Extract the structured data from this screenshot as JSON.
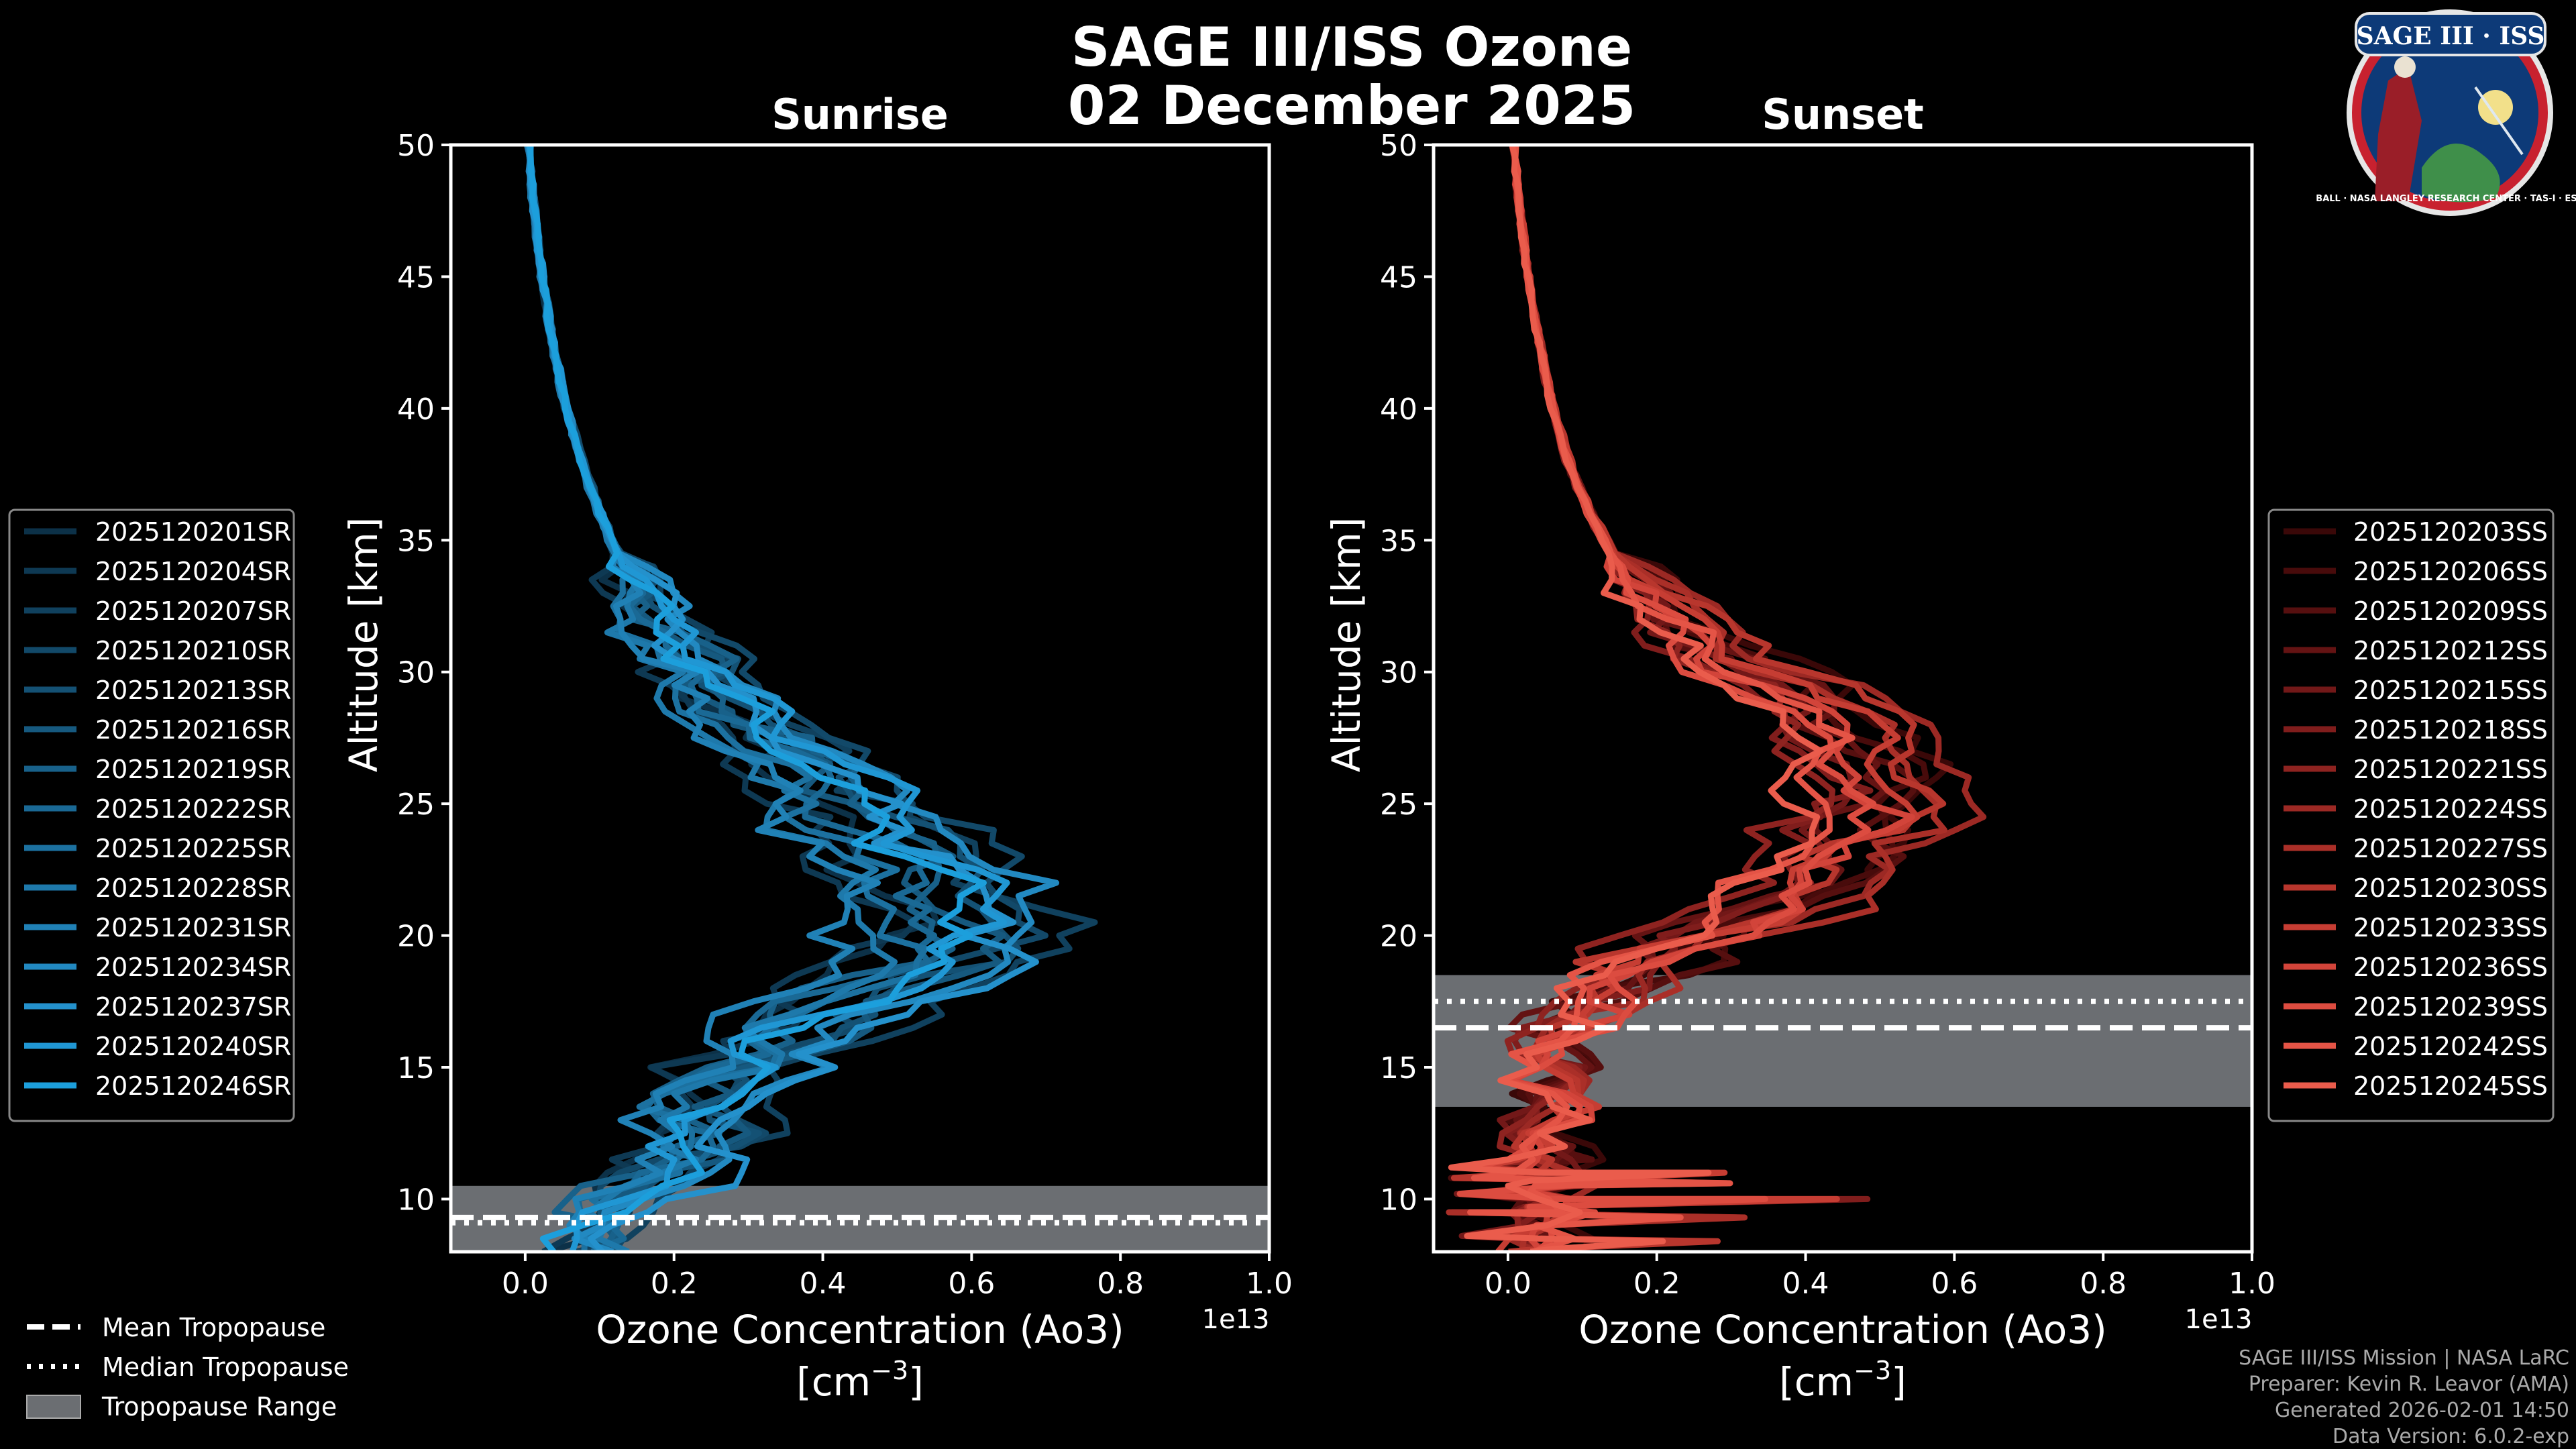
{
  "title": "SAGE III/ISS Ozone",
  "date": "02 December 2025",
  "logo": {
    "text": "SAGE III · ISS",
    "ring_text": "BALL · NASA LANGLEY RESEARCH CENTER · TAS-I · ESA"
  },
  "colors": {
    "background": "#000000",
    "sunrise": "#1f9ad6",
    "sunset": "#e8604c",
    "tropopause_band": "#6b6e72"
  },
  "credits": [
    "SAGE III/ISS Mission | NASA LaRC",
    "Preparer: Kevin R. Leavor (AMA)",
    "Generated 2026-02-01 14:50",
    "Data Version: 6.0.2-exp"
  ],
  "chart_data": [
    {
      "type": "line",
      "panel": "sunrise",
      "title": "Sunrise",
      "xlabel": "Ozone Concentration (Ao3)",
      "xunit": "[cm^-3]",
      "xunit_base": "[cm",
      "xunit_exp": "−3",
      "xunit_close": "]",
      "ylabel": "Altitude [km]",
      "x_scale_label": "1e13",
      "xlim": [
        -0.1,
        1.0
      ],
      "ylim": [
        8,
        50
      ],
      "xticks": [
        0.0,
        0.2,
        0.4,
        0.6,
        0.8,
        1.0
      ],
      "xtick_labels": [
        "0.0",
        "0.2",
        "0.4",
        "0.6",
        "0.8",
        "1.0"
      ],
      "yticks": [
        10,
        15,
        20,
        25,
        30,
        35,
        40,
        45,
        50
      ],
      "ytick_labels": [
        "10",
        "15",
        "20",
        "25",
        "30",
        "35",
        "40",
        "45",
        "50"
      ],
      "legend_position": "left",
      "tropopause": {
        "mean": 9.3,
        "median": 9.1,
        "range": [
          8,
          10.5
        ]
      },
      "series_names": [
        "2025120201SR",
        "2025120204SR",
        "2025120207SR",
        "2025120210SR",
        "2025120213SR",
        "2025120216SR",
        "2025120219SR",
        "2025120222SR",
        "2025120225SR",
        "2025120228SR",
        "2025120231SR",
        "2025120234SR",
        "2025120237SR",
        "2025120240SR",
        "2025120246SR"
      ],
      "series_colors": [
        "#0c3148",
        "#0e3953",
        "#10415e",
        "#124969",
        "#145174",
        "#16597f",
        "#18618a",
        "#1a6995",
        "#1c71a0",
        "#1e79ab",
        "#2081b6",
        "#2289c1",
        "#2491cc",
        "#2097d4",
        "#1c9fdc"
      ],
      "profile_shape": {
        "altitude": [
          8,
          9,
          10,
          11,
          12,
          13,
          14,
          15,
          16,
          17,
          18,
          19,
          20,
          21,
          22,
          23,
          24,
          25,
          26,
          27,
          28,
          29,
          30,
          32,
          34,
          36,
          38,
          40,
          42,
          44,
          46,
          48,
          50
        ],
        "concentration": [
          0.07,
          0.09,
          0.13,
          0.18,
          0.21,
          0.22,
          0.24,
          0.27,
          0.32,
          0.38,
          0.45,
          0.52,
          0.55,
          0.55,
          0.52,
          0.48,
          0.45,
          0.42,
          0.38,
          0.33,
          0.29,
          0.25,
          0.22,
          0.17,
          0.13,
          0.1,
          0.075,
          0.055,
          0.04,
          0.028,
          0.018,
          0.01,
          0.005
        ]
      }
    },
    {
      "type": "line",
      "panel": "sunset",
      "title": "Sunset",
      "xlabel": "Ozone Concentration (Ao3)",
      "xunit": "[cm^-3]",
      "xunit_base": "[cm",
      "xunit_exp": "−3",
      "xunit_close": "]",
      "ylabel": "Altitude [km]",
      "x_scale_label": "1e13",
      "xlim": [
        -0.1,
        1.0
      ],
      "ylim": [
        8,
        50
      ],
      "xticks": [
        0.0,
        0.2,
        0.4,
        0.6,
        0.8,
        1.0
      ],
      "xtick_labels": [
        "0.0",
        "0.2",
        "0.4",
        "0.6",
        "0.8",
        "1.0"
      ],
      "yticks": [
        10,
        15,
        20,
        25,
        30,
        35,
        40,
        45,
        50
      ],
      "ytick_labels": [
        "10",
        "15",
        "20",
        "25",
        "30",
        "35",
        "40",
        "45",
        "50"
      ],
      "legend_position": "right",
      "tropopause": {
        "mean": 16.5,
        "median": 17.5,
        "range": [
          13.5,
          18.5
        ]
      },
      "series_names": [
        "2025120203SS",
        "2025120206SS",
        "2025120209SS",
        "2025120212SS",
        "2025120215SS",
        "2025120218SS",
        "2025120221SS",
        "2025120224SS",
        "2025120227SS",
        "2025120230SS",
        "2025120233SS",
        "2025120236SS",
        "2025120239SS",
        "2025120242SS",
        "2025120245SS"
      ],
      "series_colors": [
        "#3a0808",
        "#480b0b",
        "#560f0f",
        "#641313",
        "#721818",
        "#801d1c",
        "#8e2320",
        "#9c2924",
        "#aa2f28",
        "#b8362d",
        "#c63d33",
        "#d2443a",
        "#dc4c40",
        "#e45446",
        "#ea5c4c"
      ],
      "profile_shape": {
        "altitude": [
          8,
          9,
          10,
          11,
          12,
          13,
          14,
          15,
          16,
          17,
          18,
          19,
          20,
          21,
          22,
          23,
          24,
          25,
          26,
          27,
          28,
          29,
          30,
          32,
          34,
          36,
          38,
          40,
          42,
          44,
          46,
          48,
          50
        ],
        "concentration": [
          0.05,
          0.05,
          0.05,
          0.05,
          0.05,
          0.05,
          0.05,
          0.05,
          0.06,
          0.08,
          0.12,
          0.18,
          0.26,
          0.33,
          0.38,
          0.42,
          0.45,
          0.46,
          0.46,
          0.45,
          0.42,
          0.37,
          0.3,
          0.21,
          0.15,
          0.11,
          0.08,
          0.06,
          0.045,
          0.032,
          0.022,
          0.014,
          0.008
        ]
      },
      "noise_spikes": [
        {
          "altitude": 10.0,
          "value": 0.5
        },
        {
          "altitude": 10.6,
          "value": 0.3
        },
        {
          "altitude": 11.0,
          "value": 0.3
        },
        {
          "altitude": 9.3,
          "value": 0.35
        },
        {
          "altitude": 8.4,
          "value": 0.3
        }
      ]
    }
  ],
  "shared_legend": {
    "mean_label": "Mean Tropopause",
    "median_label": "Median Tropopause",
    "range_label": "Tropopause Range"
  }
}
